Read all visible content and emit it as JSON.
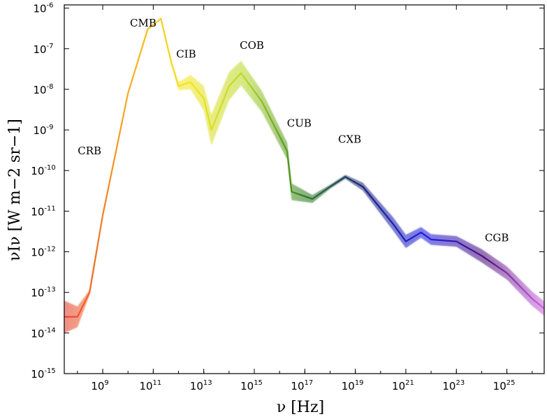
{
  "chart_data": {
    "type": "area",
    "title": "",
    "xlabel": "ν [Hz]",
    "ylabel": "νIν [W m−2 sr−1]",
    "xscale": "log",
    "yscale": "log",
    "xlim": [
      30000000.0,
      3e+26
    ],
    "ylim": [
      1e-15,
      1.2e-06
    ],
    "x_ticks": [
      "10^9",
      "10^11",
      "10^13",
      "10^15",
      "10^17",
      "10^19",
      "10^21",
      "10^23",
      "10^25"
    ],
    "y_ticks": [
      "10^-15",
      "10^-14",
      "10^-13",
      "10^-12",
      "10^-11",
      "10^-10",
      "10^-9",
      "10^-8",
      "10^-7",
      "10^-6"
    ],
    "grid": false,
    "legend": "none",
    "annotations": [
      {
        "text": "CRB",
        "x": 300000000.0,
        "y": 2.5e-10
      },
      {
        "text": "CMB",
        "x": 40000000000.0,
        "y": 3.5e-07
      },
      {
        "text": "CIB",
        "x": 2000000000000.0,
        "y": 6e-08
      },
      {
        "text": "COB",
        "x": 800000000000000.0,
        "y": 1e-07
      },
      {
        "text": "CUB",
        "x": 6e+16,
        "y": 1.2e-09
      },
      {
        "text": "CXB",
        "x": 6e+18,
        "y": 4.8e-10
      },
      {
        "text": "CGB",
        "x": 4e+24,
        "y": 1.8e-12
      }
    ],
    "series": [
      {
        "color_stops": [
          "#e63c2e",
          "#f5a623",
          "#f5e61e",
          "#b8d82a",
          "#2e7d1e",
          "#1a237e",
          "#1e1ee0",
          "#4b0d7a",
          "#cc66dd"
        ],
        "points": [
          {
            "x": 30000000.0,
            "y": 2.5e-14,
            "band": 2.5
          },
          {
            "x": 100000000.0,
            "y": 2.5e-14,
            "band": 1.8
          },
          {
            "x": 300000000.0,
            "y": 1e-13,
            "band": 1.15
          },
          {
            "x": 1000000000.0,
            "y": 8e-12,
            "band": 1.05
          },
          {
            "x": 10000000000.0,
            "y": 8e-09,
            "band": 1.02
          },
          {
            "x": 60000000000.0,
            "y": 3e-07,
            "band": 1.02
          },
          {
            "x": 200000000000.0,
            "y": 5.5e-07,
            "band": 1.02
          },
          {
            "x": 500000000000.0,
            "y": 5e-08,
            "band": 1.08
          },
          {
            "x": 1000000000000.0,
            "y": 1.2e-08,
            "band": 1.25
          },
          {
            "x": 3000000000000.0,
            "y": 1.5e-08,
            "band": 1.5
          },
          {
            "x": 10000000000000.0,
            "y": 6e-09,
            "band": 2.0
          },
          {
            "x": 20000000000000.0,
            "y": 1e-09,
            "band": 2.4
          },
          {
            "x": 100000000000000.0,
            "y": 1.2e-08,
            "band": 2.2
          },
          {
            "x": 300000000000000.0,
            "y": 2.5e-08,
            "band": 2.0
          },
          {
            "x": 2000000000000000.0,
            "y": 5e-09,
            "band": 1.8
          },
          {
            "x": 2e+16,
            "y": 3e-10,
            "band": 1.6
          },
          {
            "x": 3e+16,
            "y": 3e-11,
            "band": 1.6
          },
          {
            "x": 2e+17,
            "y": 2e-11,
            "band": 1.25
          },
          {
            "x": 1e+18,
            "y": 4e-11,
            "band": 1.12
          },
          {
            "x": 4e+18,
            "y": 7e-11,
            "band": 1.12
          },
          {
            "x": 2e+19,
            "y": 4e-11,
            "band": 1.25
          },
          {
            "x": 3e+20,
            "y": 5e-12,
            "band": 1.45
          },
          {
            "x": 1e+21,
            "y": 1.8e-12,
            "band": 1.45
          },
          {
            "x": 4e+21,
            "y": 3e-12,
            "band": 1.35
          },
          {
            "x": 1e+22,
            "y": 2e-12,
            "band": 1.35
          },
          {
            "x": 1e+23,
            "y": 1.8e-12,
            "band": 1.35
          },
          {
            "x": 1e+24,
            "y": 8e-13,
            "band": 1.45
          },
          {
            "x": 1e+25,
            "y": 3e-13,
            "band": 1.45
          },
          {
            "x": 1e+26,
            "y": 7e-14,
            "band": 1.5
          },
          {
            "x": 3e+26,
            "y": 4e-14,
            "band": 1.5
          }
        ]
      }
    ]
  }
}
